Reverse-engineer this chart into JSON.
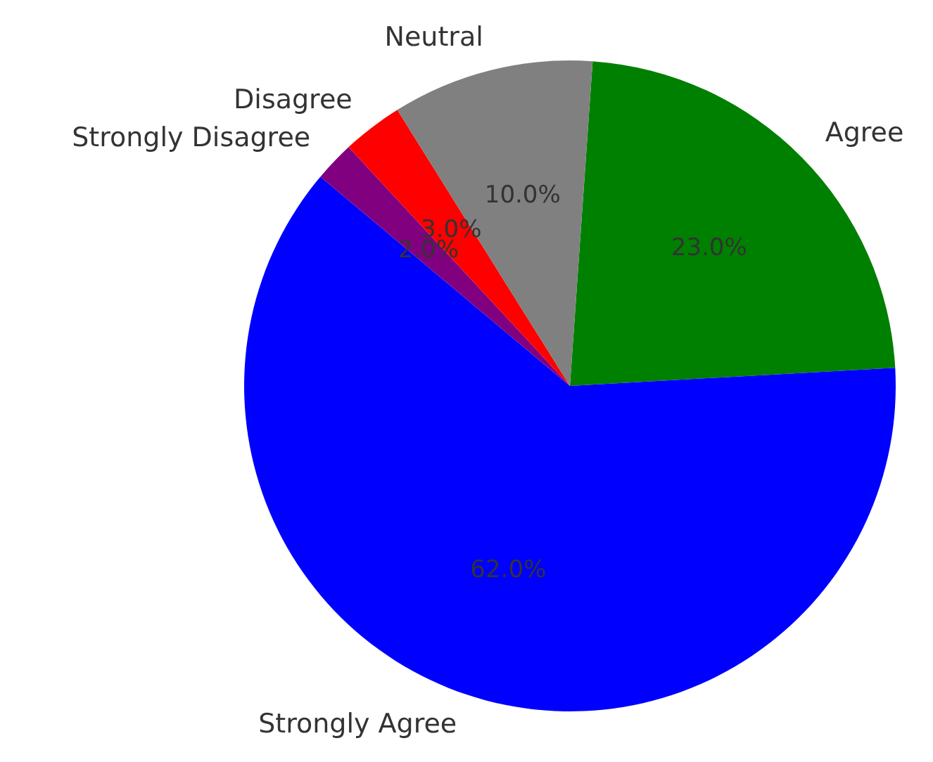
{
  "chart_data": {
    "type": "pie",
    "categories": [
      "Agree",
      "Strongly Agree",
      "Strongly Disagree",
      "Disagree",
      "Neutral"
    ],
    "values": [
      23,
      62,
      2,
      3,
      10
    ],
    "colors": [
      "#008000",
      "#0000ff",
      "#800080",
      "#ff0000",
      "#808080"
    ],
    "value_labels": [
      "23.0%",
      "62.0%",
      "2.0%",
      "3.0%",
      "10.0%"
    ],
    "legend": false
  }
}
